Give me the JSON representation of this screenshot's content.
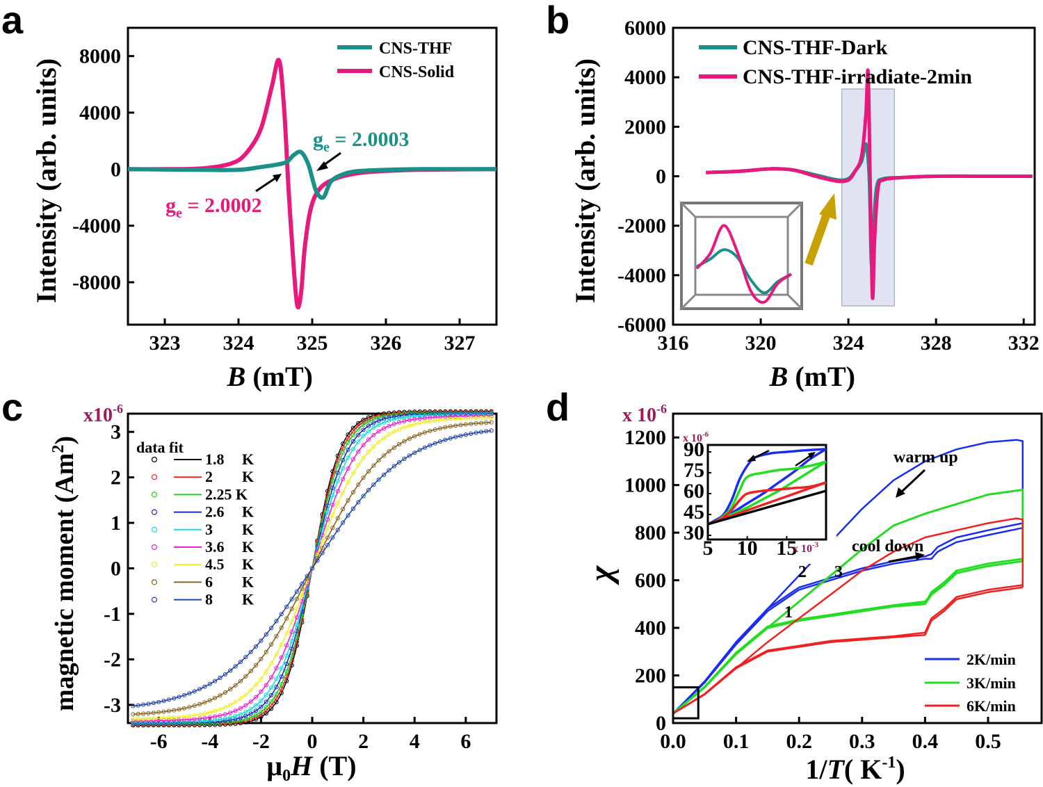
{
  "colors": {
    "teal": "#1a9088",
    "pink": "#e8197d",
    "scale": "#a0195a",
    "blue": "#1a2cf0",
    "green": "#22dd22",
    "red": "#ee2222",
    "gold": "#c8a000"
  },
  "chart_data": [
    {
      "panel": "a",
      "type": "line",
      "xlabel_main": "B",
      "xlabel_unit": "(mT)",
      "ylabel": "Intensity (arb. units)",
      "xlim": [
        322.5,
        327.5
      ],
      "ylim": [
        -11000,
        10000
      ],
      "xticks": [
        323,
        324,
        325,
        326,
        327
      ],
      "yticks": [
        -8000,
        -4000,
        0,
        4000,
        8000
      ],
      "xtick_labels": [
        "323",
        "324",
        "325",
        "326",
        "327"
      ],
      "ytick_labels": [
        "-8000",
        "-4000",
        "0",
        "4000",
        "8000"
      ],
      "series": [
        {
          "name": "CNS-THF",
          "color": "teal",
          "x": [
            322.5,
            323.5,
            324.0,
            324.3,
            324.5,
            324.65,
            324.75,
            324.85,
            324.95,
            325.05,
            325.15,
            325.25,
            325.4,
            325.6,
            326.0,
            326.5,
            327.5
          ],
          "y": [
            0,
            -50,
            -50,
            150,
            300,
            500,
            1000,
            1200,
            300,
            -1500,
            -2000,
            -900,
            -400,
            -150,
            -50,
            0,
            0
          ]
        },
        {
          "name": "CNS-Solid",
          "color": "pink",
          "x": [
            322.5,
            323.0,
            323.5,
            323.9,
            324.1,
            324.3,
            324.45,
            324.55,
            324.62,
            324.68,
            324.75,
            324.8,
            324.85,
            324.9,
            324.98,
            325.1,
            325.3,
            325.6,
            326.0,
            326.5,
            327.5
          ],
          "y": [
            0,
            0,
            50,
            400,
            1100,
            2800,
            5800,
            7700,
            4200,
            -1500,
            -7000,
            -9700,
            -8700,
            -5500,
            -2800,
            -1400,
            -700,
            -300,
            -120,
            -40,
            0
          ]
        }
      ],
      "legend": [
        "CNS-THF",
        "CNS-Solid"
      ],
      "annotations": {
        "teal_g": "g",
        "teal_sub": "e",
        "teal_val": " = 2.0003",
        "pink_g": "g",
        "pink_sub": "e",
        "pink_val": " = 2.0002"
      }
    },
    {
      "panel": "b",
      "type": "line",
      "xlabel_main": "B",
      "xlabel_unit": "(mT)",
      "ylabel": "Intensity (arb. units)",
      "xlim": [
        316,
        332.5
      ],
      "ylim": [
        -6000,
        6000
      ],
      "xticks": [
        316,
        320,
        324,
        328,
        332
      ],
      "yticks": [
        -6000,
        -4000,
        -2000,
        0,
        2000,
        4000,
        6000
      ],
      "xtick_labels": [
        "316",
        "320",
        "324",
        "328",
        "332"
      ],
      "ytick_labels": [
        "-6000",
        "-4000",
        "-2000",
        "0",
        "2000",
        "4000",
        "6000"
      ],
      "series": [
        {
          "name": "CNS-THF-Dark",
          "color": "teal",
          "x": [
            317.5,
            319,
            320.5,
            321.5,
            322.5,
            323.5,
            324.0,
            324.3,
            324.6,
            324.8,
            324.95,
            325.05,
            325.15,
            325.3,
            325.6,
            326.5,
            328,
            330,
            332.4
          ],
          "y": [
            150,
            200,
            300,
            250,
            50,
            -150,
            -100,
            200,
            600,
            1300,
            0,
            -3500,
            -2000,
            -400,
            -100,
            -50,
            0,
            0,
            0
          ]
        },
        {
          "name": "CNS-THF-irradiate-2min",
          "color": "pink",
          "x": [
            317.5,
            319,
            320.5,
            321.5,
            322.5,
            323.5,
            324.0,
            324.3,
            324.6,
            324.8,
            324.9,
            325.0,
            325.1,
            325.2,
            325.35,
            325.6,
            326.5,
            328,
            330,
            332.4
          ],
          "y": [
            150,
            200,
            300,
            250,
            0,
            -200,
            -150,
            200,
            800,
            2500,
            4200,
            -500,
            -4900,
            -2500,
            -500,
            -150,
            -50,
            0,
            0,
            0
          ]
        }
      ],
      "legend": [
        "CNS-THF-Dark",
        "CNS-THF-irradiate-2min"
      ]
    },
    {
      "panel": "c",
      "type": "scatter",
      "xlabel_main": "μ",
      "xlabel_sub": "0",
      "xlabel_var": "H",
      "xlabel_unit": " (T)",
      "ylabel": "magnetic moment (Am",
      "ylabel_sup": "2",
      "ylabel_close": ")",
      "scale_label": "x10",
      "scale_exp": "-6",
      "xlim": [
        -7.2,
        7.2
      ],
      "ylim": [
        -3.4,
        3.4
      ],
      "xticks": [
        -6,
        -4,
        -2,
        0,
        2,
        4,
        6
      ],
      "yticks": [
        -3,
        -2,
        -1,
        0,
        1,
        2,
        3
      ],
      "xtick_labels": [
        "-6",
        "-4",
        "-2",
        "0",
        "2",
        "4",
        "6"
      ],
      "ytick_labels": [
        "-3",
        "-2",
        "-1",
        "0",
        "1",
        "2",
        "3"
      ],
      "legend_header": "data fit",
      "series": [
        {
          "name": "1.8",
          "unit": "K",
          "ms": 3.45,
          "k": 0.93,
          "color": "#000000"
        },
        {
          "name": "2",
          "unit": "K",
          "ms": 3.43,
          "k": 0.88,
          "color": "#ee2222"
        },
        {
          "name": "2.25 K",
          "unit": "",
          "ms": 3.42,
          "k": 0.82,
          "color": "#22cc22"
        },
        {
          "name": "2.6",
          "unit": "K",
          "ms": 3.4,
          "k": 0.74,
          "color": "#1a2cc0"
        },
        {
          "name": "3",
          "unit": "K",
          "ms": 3.38,
          "k": 0.66,
          "color": "#11dddd"
        },
        {
          "name": "3.6",
          "unit": "K",
          "ms": 3.35,
          "k": 0.57,
          "color": "#ee22cc"
        },
        {
          "name": "4.5",
          "unit": "K",
          "ms": 3.32,
          "k": 0.47,
          "color": "#eeee22"
        },
        {
          "name": "6",
          "unit": "K",
          "ms": 3.25,
          "k": 0.36,
          "color": "#886622"
        },
        {
          "name": "8",
          "unit": "K",
          "ms": 3.15,
          "k": 0.28,
          "color": "#2244aa"
        }
      ]
    },
    {
      "panel": "d",
      "type": "line",
      "xlabel_main": "1/",
      "xlabel_var": "T",
      "xlabel_unit": "( K",
      "xlabel_sup": "-1",
      "xlabel_close": ")",
      "ylabel": "χ",
      "scale_label": "x 10",
      "scale_exp": "-6",
      "xlim": [
        0,
        0.585
      ],
      "ylim": [
        0,
        1300
      ],
      "xticks": [
        0.0,
        0.1,
        0.2,
        0.3,
        0.4,
        0.5
      ],
      "yticks": [
        0,
        200,
        400,
        600,
        800,
        1000,
        1200
      ],
      "xtick_labels": [
        "0.0",
        "0.1",
        "0.2",
        "0.3",
        "0.4",
        "0.5"
      ],
      "ytick_labels": [
        "0",
        "200",
        "400",
        "600",
        "800",
        "1000",
        "1200"
      ],
      "legend": [
        "2K/min",
        "3K/min",
        "6K/min"
      ],
      "annotations": {
        "warm": "warm up",
        "cool": "cool down",
        "n1": "1",
        "n2": "2",
        "n3": "3"
      },
      "series": [
        {
          "name": "2K/min",
          "color": "blue",
          "x": [
            0.0,
            0.05,
            0.1,
            0.15,
            0.2,
            0.25,
            0.3,
            0.35,
            0.4,
            0.45,
            0.5,
            0.545,
            0.555,
            0.555
          ],
          "y": [
            40,
            170,
            340,
            480,
            620,
            760,
            900,
            1020,
            1100,
            1150,
            1180,
            1190,
            1185,
            820
          ]
        },
        {
          "name": "2K/min-b",
          "color": "blue",
          "x": [
            0.555,
            0.5,
            0.45,
            0.42,
            0.41,
            0.4,
            0.35,
            0.3,
            0.25,
            0.2,
            0.15,
            0.1,
            0.05,
            0.0
          ],
          "y": [
            820,
            790,
            760,
            720,
            690,
            690,
            670,
            640,
            600,
            560,
            470,
            330,
            170,
            40
          ]
        },
        {
          "name": "2K/min-c",
          "color": "blue",
          "x": [
            0.555,
            0.5,
            0.45,
            0.42,
            0.41,
            0.4,
            0.35,
            0.3,
            0.25,
            0.2,
            0.15,
            0.1,
            0.05,
            0.0
          ],
          "y": [
            840,
            810,
            780,
            740,
            710,
            700,
            680,
            650,
            610,
            570,
            480,
            340,
            175,
            40
          ]
        },
        {
          "name": "3K/min",
          "color": "green",
          "x": [
            0.0,
            0.05,
            0.1,
            0.15,
            0.2,
            0.25,
            0.3,
            0.35,
            0.4,
            0.45,
            0.5,
            0.555,
            0.555
          ],
          "y": [
            40,
            150,
            290,
            400,
            510,
            620,
            730,
            830,
            880,
            920,
            960,
            980,
            680
          ]
        },
        {
          "name": "3K/min-b",
          "color": "green",
          "x": [
            0.555,
            0.5,
            0.45,
            0.43,
            0.42,
            0.41,
            0.405,
            0.4,
            0.35,
            0.3,
            0.25,
            0.2,
            0.15,
            0.1,
            0.05,
            0.0
          ],
          "y": [
            680,
            660,
            630,
            580,
            560,
            540,
            520,
            500,
            490,
            470,
            450,
            430,
            400,
            290,
            150,
            40
          ]
        },
        {
          "name": "3K/min-c",
          "color": "green",
          "x": [
            0.555,
            0.5,
            0.45,
            0.43,
            0.42,
            0.41,
            0.405,
            0.4,
            0.35,
            0.3,
            0.25,
            0.2,
            0.15,
            0.1,
            0.05,
            0.0
          ],
          "y": [
            690,
            670,
            640,
            590,
            570,
            550,
            525,
            510,
            495,
            475,
            455,
            435,
            405,
            295,
            152,
            40
          ]
        },
        {
          "name": "6K/min",
          "color": "red",
          "x": [
            0.0,
            0.05,
            0.1,
            0.15,
            0.2,
            0.25,
            0.3,
            0.35,
            0.4,
            0.45,
            0.5,
            0.545,
            0.555,
            0.555
          ],
          "y": [
            40,
            120,
            230,
            340,
            440,
            540,
            640,
            720,
            780,
            810,
            840,
            860,
            855,
            570
          ]
        },
        {
          "name": "6K/min-b",
          "color": "red",
          "x": [
            0.555,
            0.5,
            0.45,
            0.43,
            0.42,
            0.41,
            0.405,
            0.4,
            0.35,
            0.3,
            0.25,
            0.2,
            0.15,
            0.1,
            0.05,
            0.0
          ],
          "y": [
            570,
            550,
            520,
            470,
            450,
            430,
            400,
            370,
            360,
            350,
            340,
            320,
            300,
            230,
            120,
            40
          ]
        },
        {
          "name": "6K/min-c",
          "color": "red",
          "x": [
            0.555,
            0.5,
            0.45,
            0.43,
            0.42,
            0.41,
            0.405,
            0.4,
            0.35,
            0.3,
            0.25,
            0.2,
            0.15,
            0.1,
            0.05,
            0.0
          ],
          "y": [
            580,
            560,
            530,
            480,
            460,
            440,
            410,
            380,
            365,
            355,
            345,
            325,
            305,
            235,
            122,
            40
          ]
        }
      ],
      "inset": {
        "scale_label": "x 10",
        "scale_exp": "-6",
        "xscale_label": "x 10",
        "xscale_exp": "-3",
        "xlim": [
          5,
          20
        ],
        "ylim": [
          27,
          95
        ],
        "xticks": [
          5,
          10,
          15
        ],
        "yticks": [
          30,
          45,
          60,
          75,
          90
        ],
        "xtick_labels": [
          "5",
          "10",
          "15"
        ],
        "ytick_labels": [
          "30",
          "45",
          "60",
          "75",
          "90"
        ],
        "series": [
          {
            "name": "blue-up",
            "color": "blue",
            "x": [
              5,
              6,
              7,
              8,
              9,
              10,
              11,
              13,
              15,
              17,
              20
            ],
            "y": [
              38,
              41,
              45,
              55,
              70,
              80,
              86,
              89,
              90,
              91,
              92
            ]
          },
          {
            "name": "blue-down",
            "color": "blue",
            "x": [
              20,
              18,
              16,
              14,
              12,
              10,
              8,
              6,
              5
            ],
            "y": [
              92,
              85,
              76,
              68,
              60,
              53,
              46,
              40,
              38
            ]
          },
          {
            "name": "green-up",
            "color": "green",
            "x": [
              5,
              6,
              7,
              8,
              9,
              10,
              12,
              14,
              16,
              18,
              20
            ],
            "y": [
              38,
              40,
              44,
              50,
              62,
              72,
              75,
              77,
              78,
              80,
              83
            ]
          },
          {
            "name": "green-down",
            "color": "green",
            "x": [
              20,
              18,
              16,
              14,
              12,
              10,
              8,
              6,
              5
            ],
            "y": [
              83,
              76,
              69,
              62,
              56,
              50,
              45,
              40,
              38
            ]
          },
          {
            "name": "red-up",
            "color": "red",
            "x": [
              5,
              6,
              7,
              8,
              9,
              10,
              12,
              14,
              16,
              18,
              20
            ],
            "y": [
              38,
              40,
              43,
              48,
              55,
              60,
              62,
              63,
              64,
              65,
              68
            ]
          },
          {
            "name": "red-down",
            "color": "red",
            "x": [
              20,
              18,
              16,
              14,
              12,
              10,
              8,
              6,
              5
            ],
            "y": [
              68,
              64,
              60,
              56,
              52,
              48,
              44,
              40,
              38
            ]
          },
          {
            "name": "black",
            "color": "black",
            "x": [
              5,
              20
            ],
            "y": [
              38,
              62
            ]
          }
        ]
      }
    }
  ]
}
